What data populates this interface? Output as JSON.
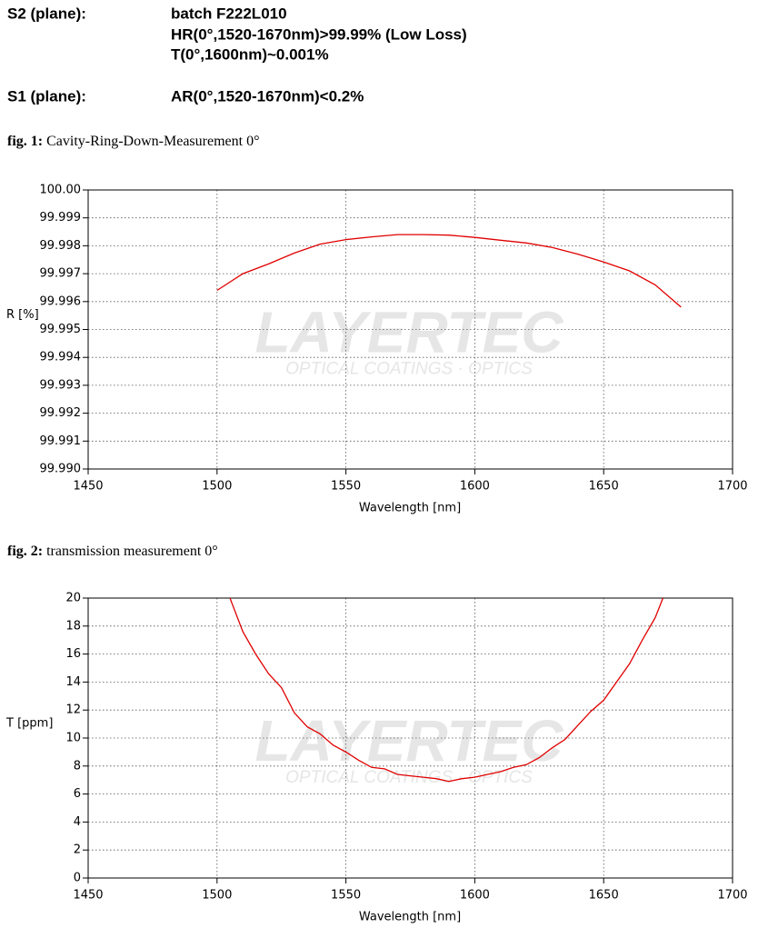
{
  "header": {
    "rows": [
      {
        "label": "S2 (plane):",
        "lines": [
          "batch F222L010",
          "HR(0°,1520-1670nm)>99.99% (Low Loss)",
          "T(0°,1600nm)~0.001%"
        ]
      },
      {
        "label": "S1 (plane):",
        "lines": [
          "AR(0°,1520-1670nm)<0.2%"
        ]
      }
    ]
  },
  "figures": [
    {
      "label": "fig. 1:",
      "caption": "Cavity-Ring-Down-Measurement 0°"
    },
    {
      "label": "fig. 2:",
      "caption": "transmission measurement 0°"
    }
  ],
  "chart_data": [
    {
      "type": "line",
      "xlabel": "Wavelength [nm]",
      "ylabel": "R [%]",
      "watermark": "LAYERTEC",
      "watermark_subtitle": "OPTICAL COATINGS · OPTICS",
      "x": [
        1500,
        1510,
        1520,
        1530,
        1540,
        1550,
        1560,
        1570,
        1580,
        1590,
        1600,
        1610,
        1620,
        1630,
        1640,
        1650,
        1660,
        1670,
        1680
      ],
      "values": [
        99.9964,
        99.997,
        99.99735,
        99.99774,
        99.99806,
        99.99822,
        99.99832,
        99.9984,
        99.9984,
        99.99838,
        99.9983,
        99.9982,
        99.9981,
        99.99794,
        99.9977,
        99.99742,
        99.9971,
        99.9966,
        99.9958
      ],
      "color": "#e00000",
      "xlim": [
        1450,
        1700
      ],
      "xticks": [
        1450,
        1500,
        1550,
        1600,
        1650,
        1700
      ],
      "ylim": [
        99.99,
        100
      ],
      "yticks": [
        {
          "value": 99.99,
          "label": "99.990"
        },
        99.991,
        99.992,
        99.993,
        99.994,
        99.995,
        99.996,
        99.997,
        99.998,
        99.999,
        {
          "value": 100,
          "label": "100.00"
        }
      ],
      "grid": true
    },
    {
      "type": "line",
      "xlabel": "Wavelength [nm]",
      "ylabel": "T [ppm]",
      "watermark": "LAYERTEC",
      "watermark_subtitle": "OPTICAL COATINGS · OPTICS",
      "x": [
        1505,
        1510,
        1515,
        1520,
        1525,
        1530,
        1535,
        1540,
        1545,
        1550,
        1555,
        1560,
        1565,
        1570,
        1575,
        1580,
        1585,
        1590,
        1595,
        1600,
        1605,
        1610,
        1615,
        1620,
        1625,
        1630,
        1635,
        1640,
        1645,
        1650,
        1655,
        1660,
        1665,
        1670,
        1673
      ],
      "values": [
        20,
        17.6,
        16,
        14.6,
        13.6,
        11.8,
        10.8,
        10.3,
        9.5,
        9,
        8.4,
        7.9,
        7.8,
        7.4,
        7.3,
        7.2,
        7.1,
        6.9,
        7.1,
        7.2,
        7.4,
        7.6,
        7.9,
        8.1,
        8.6,
        9.3,
        9.9,
        10.9,
        11.9,
        12.7,
        14,
        15.3,
        17,
        18.6,
        20
      ],
      "color": "#e00000",
      "xlim": [
        1450,
        1700
      ],
      "xticks": [
        1450,
        1500,
        1550,
        1600,
        1650,
        1700
      ],
      "ylim": [
        0,
        20
      ],
      "yticks": [
        0,
        2,
        4,
        6,
        8,
        10,
        12,
        14,
        16,
        18,
        20
      ],
      "grid": true
    }
  ]
}
